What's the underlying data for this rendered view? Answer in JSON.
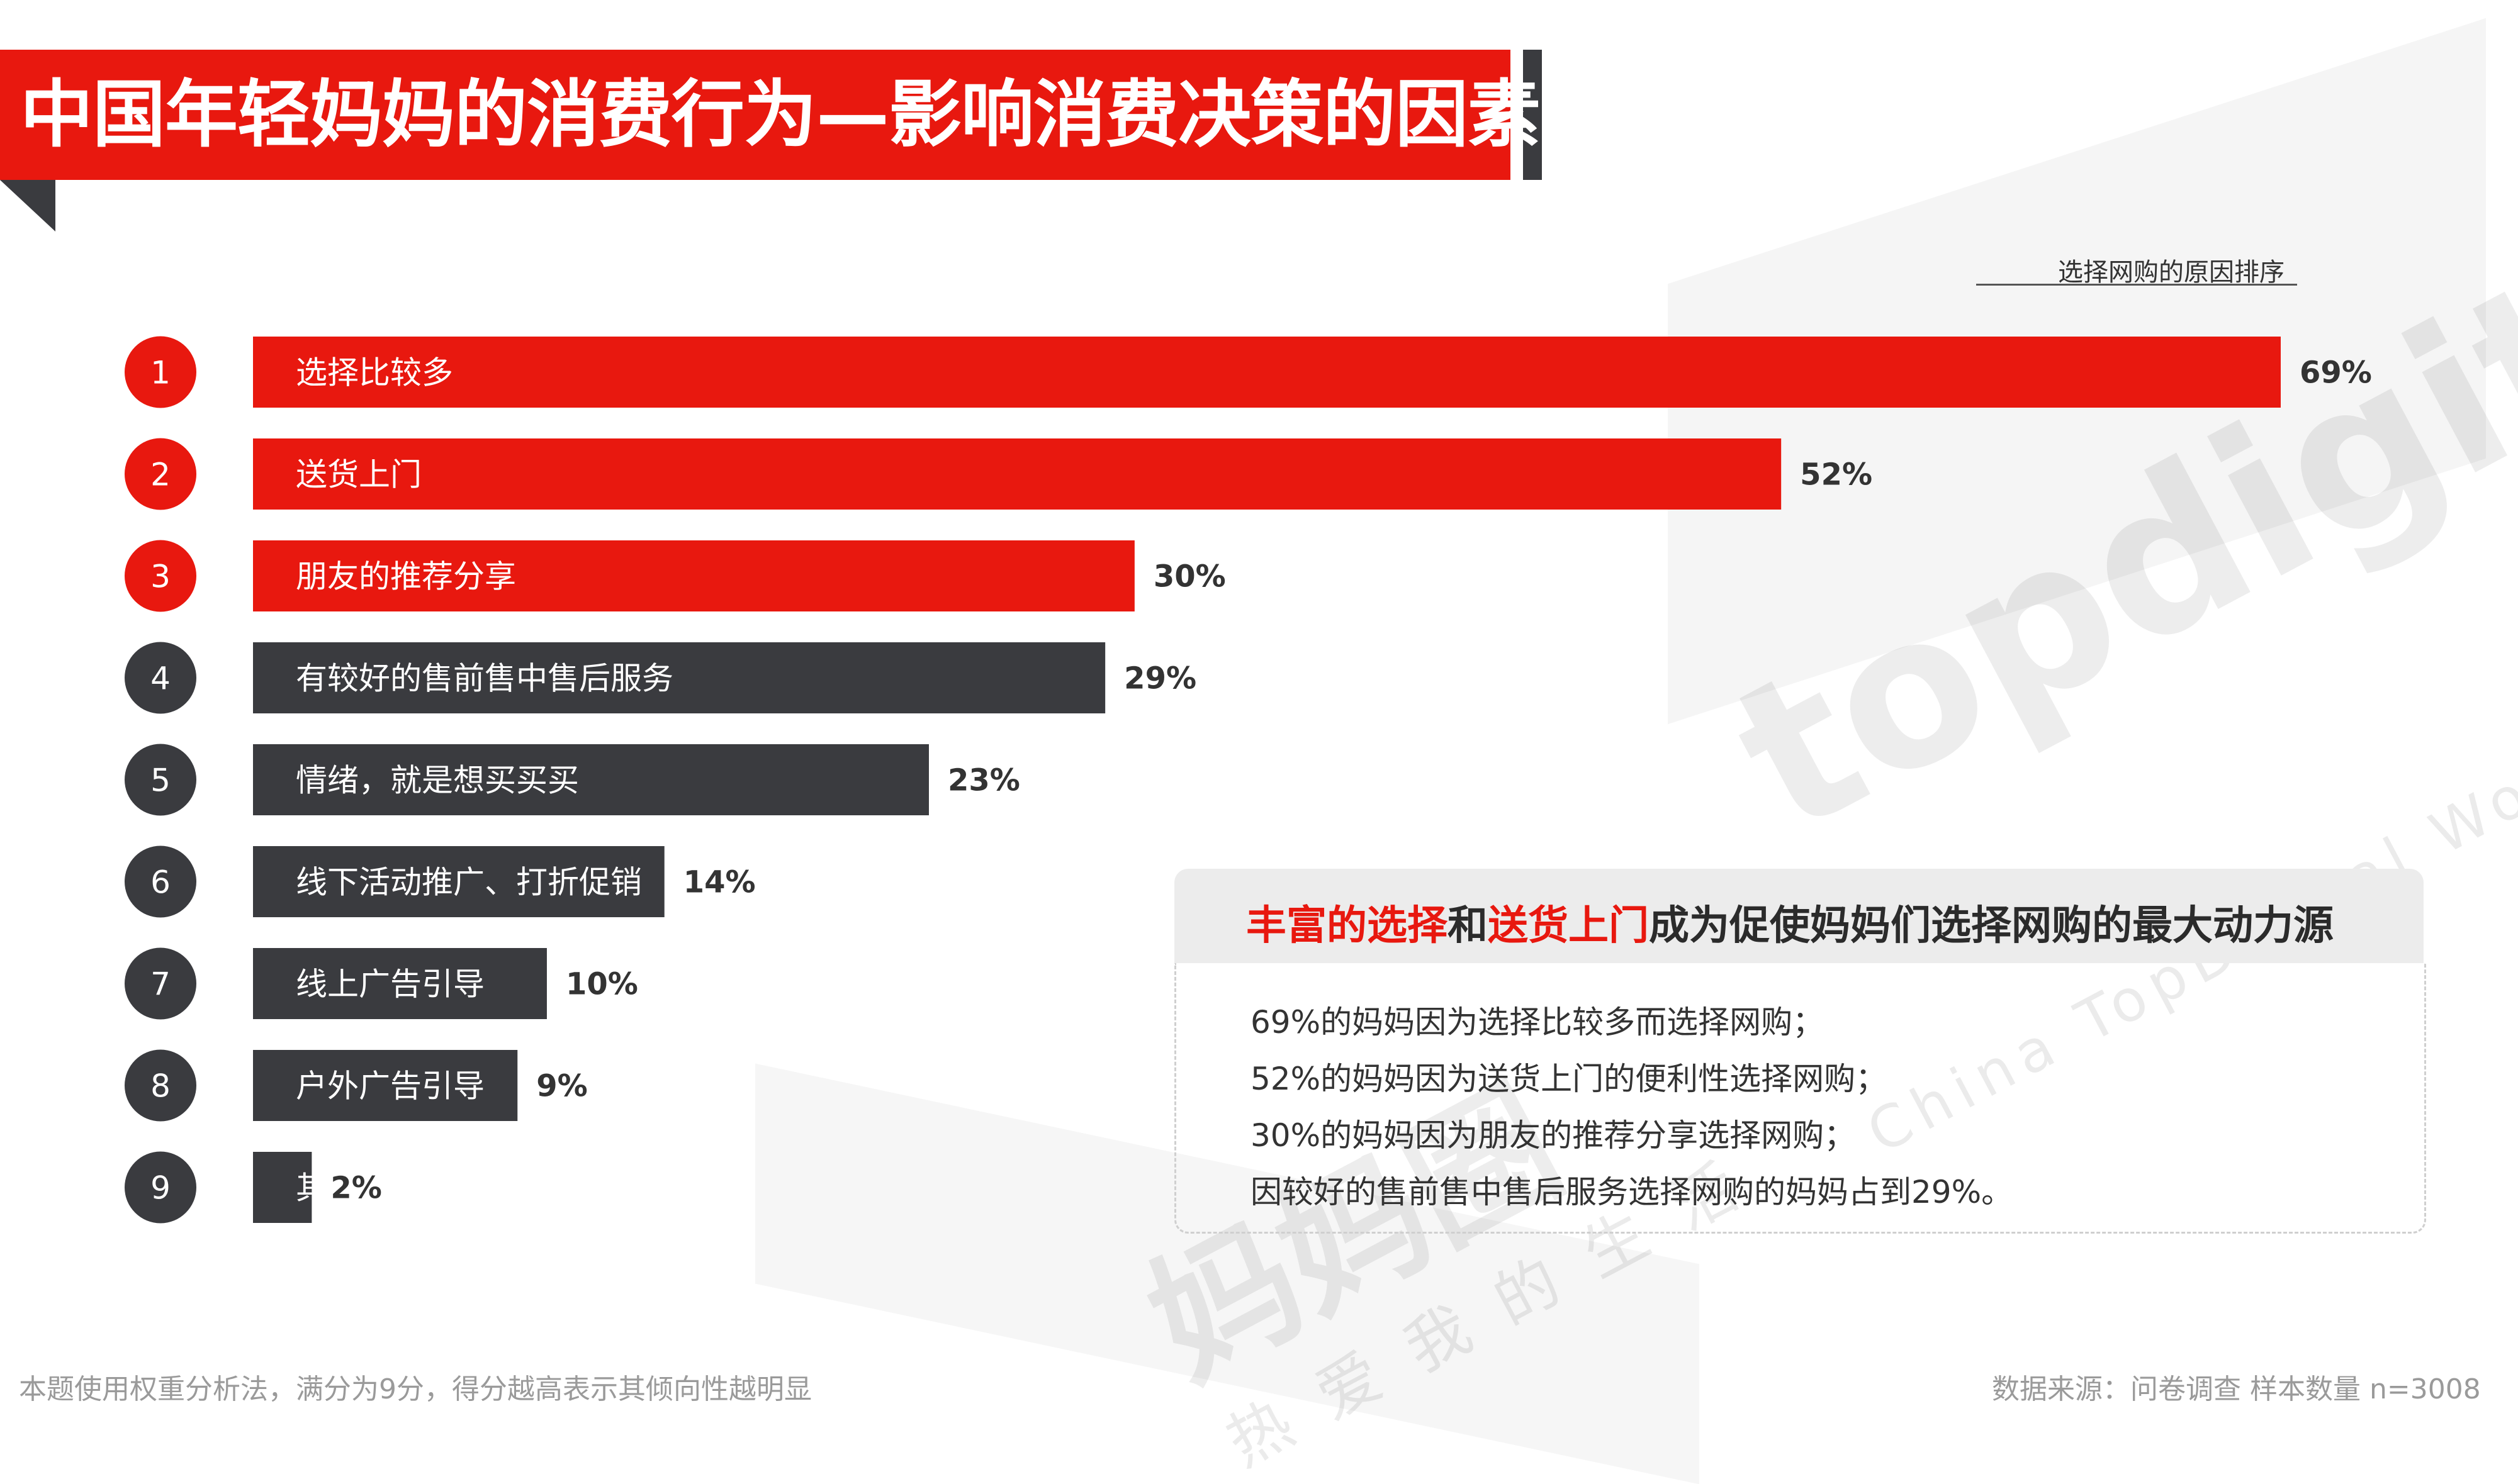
{
  "title": "中国年轻妈妈的消费行为—影响消费决策的因素",
  "legend_label": "选择网购的原因排序",
  "chart_data": {
    "type": "bar",
    "orientation": "horizontal",
    "ranks": [
      "1",
      "2",
      "3",
      "4",
      "5",
      "6",
      "7",
      "8",
      "9"
    ],
    "categories": [
      "选择比较多",
      "送货上门",
      "朋友的推荐分享",
      "有较好的售前售中售后服务",
      "情绪，就是想买买买",
      "线下活动推广、打折促销",
      "线上广告引导",
      "户外广告引导",
      "其他"
    ],
    "values": [
      69,
      52,
      30,
      29,
      23,
      14,
      10,
      9,
      2
    ],
    "value_labels": [
      "69%",
      "52%",
      "30%",
      "29%",
      "23%",
      "14%",
      "10%",
      "9%",
      "2%"
    ],
    "highlight_count": 3,
    "colors": {
      "highlight": "#e8180f",
      "normal": "#3a3b3f"
    },
    "title": "",
    "xlabel": "",
    "ylabel": "",
    "grid": false,
    "legend": "top-right"
  },
  "callout": {
    "heading_parts": [
      {
        "text": "丰富的选择",
        "highlight": true
      },
      {
        "text": "和",
        "highlight": false
      },
      {
        "text": "送货上门",
        "highlight": true
      },
      {
        "text": "成为促使妈妈们选择网购的最大动力源",
        "highlight": false
      }
    ],
    "lines": [
      "69%的妈妈因为选择比较多而选择网购；",
      "52%的妈妈因为送货上门的便利性选择网购；",
      "30%的妈妈因为朋友的推荐分享选择网购；",
      "因较好的售前售中售后服务选择网购的妈妈占到29%。"
    ]
  },
  "watermark": {
    "brand": "topdigital",
    "sub": "China TopDigital World",
    "cn": "妈妈圈",
    "slogan": "热爱我的生活"
  },
  "footer": {
    "note": "本题使用权重分析法，满分为9分，得分越高表示其倾向性越明显",
    "source": "数据来源：问卷调查 样本数量 n=3008"
  }
}
